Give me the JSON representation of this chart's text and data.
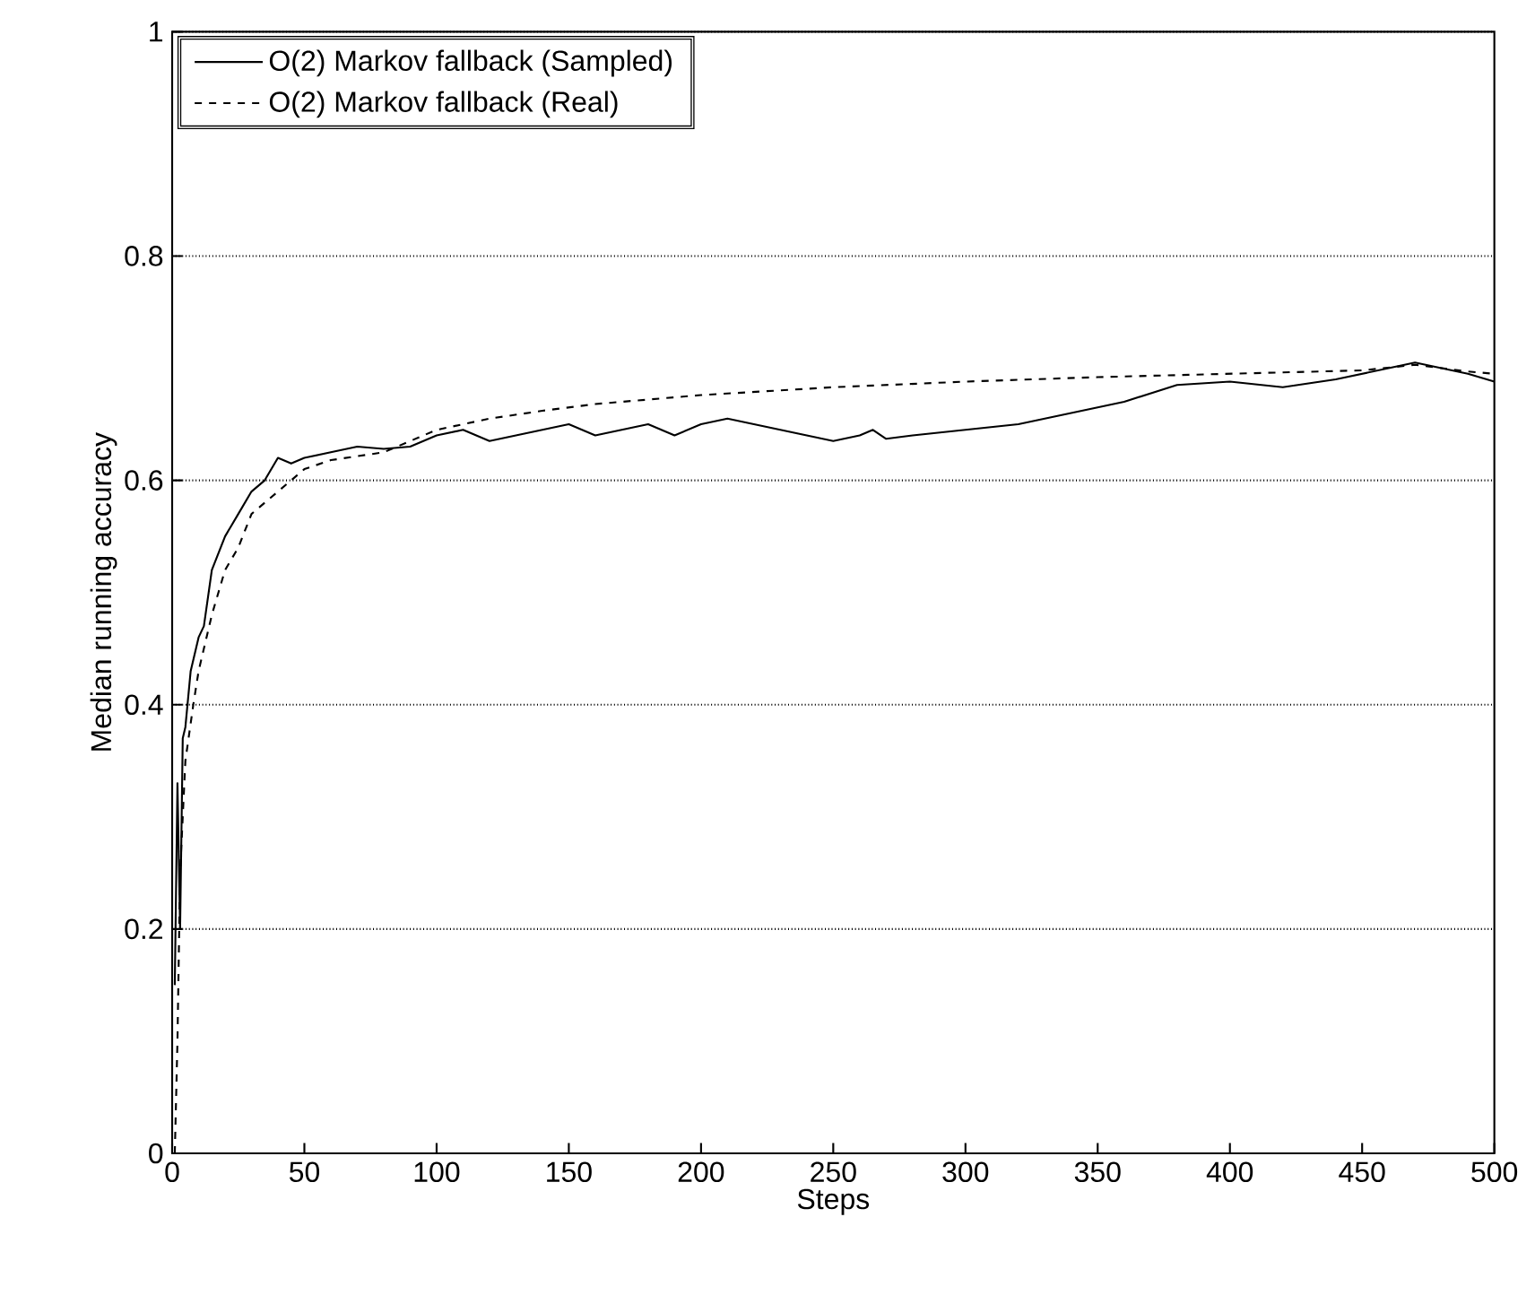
{
  "chart_data": {
    "type": "line",
    "xlabel": "Steps",
    "ylabel": "Median running accuracy",
    "xlim": [
      0,
      500
    ],
    "ylim": [
      0,
      1
    ],
    "xticks": [
      0,
      50,
      100,
      150,
      200,
      250,
      300,
      350,
      400,
      450,
      500
    ],
    "yticks": [
      0,
      0.2,
      0.4,
      0.6,
      0.8,
      1
    ],
    "grid": "y",
    "legend": "top left",
    "series": [
      {
        "name": "O(2) Markov fallback (Sampled)",
        "color": "#000000",
        "line_style": "solid",
        "x": [
          1,
          2,
          3,
          4,
          5,
          7,
          10,
          12,
          15,
          20,
          25,
          30,
          35,
          40,
          45,
          50,
          60,
          70,
          80,
          90,
          100,
          110,
          120,
          130,
          140,
          150,
          160,
          170,
          180,
          190,
          200,
          210,
          220,
          230,
          240,
          250,
          260,
          265,
          270,
          280,
          300,
          320,
          340,
          350,
          360,
          380,
          400,
          420,
          440,
          460,
          470,
          480,
          490,
          500
        ],
        "values": [
          0.15,
          0.33,
          0.2,
          0.37,
          0.38,
          0.43,
          0.46,
          0.47,
          0.52,
          0.55,
          0.57,
          0.59,
          0.6,
          0.62,
          0.615,
          0.62,
          0.625,
          0.63,
          0.628,
          0.63,
          0.64,
          0.645,
          0.635,
          0.64,
          0.645,
          0.65,
          0.64,
          0.645,
          0.65,
          0.64,
          0.65,
          0.655,
          0.65,
          0.645,
          0.64,
          0.635,
          0.64,
          0.645,
          0.637,
          0.64,
          0.645,
          0.65,
          0.66,
          0.665,
          0.67,
          0.685,
          0.688,
          0.683,
          0.69,
          0.7,
          0.705,
          0.7,
          0.695,
          0.688
        ]
      },
      {
        "name": "O(2) Markov fallback (Real)",
        "color": "#000000",
        "line_style": "dashed",
        "x": [
          1,
          2,
          3,
          5,
          8,
          10,
          15,
          20,
          25,
          30,
          35,
          40,
          50,
          60,
          80,
          100,
          120,
          140,
          160,
          180,
          200,
          250,
          300,
          350,
          400,
          450,
          470,
          490,
          500
        ],
        "values": [
          0,
          0.1,
          0.25,
          0.35,
          0.4,
          0.43,
          0.48,
          0.52,
          0.54,
          0.57,
          0.58,
          0.59,
          0.61,
          0.618,
          0.625,
          0.645,
          0.655,
          0.662,
          0.668,
          0.672,
          0.676,
          0.683,
          0.688,
          0.692,
          0.695,
          0.698,
          0.703,
          0.697,
          0.695
        ]
      }
    ]
  }
}
